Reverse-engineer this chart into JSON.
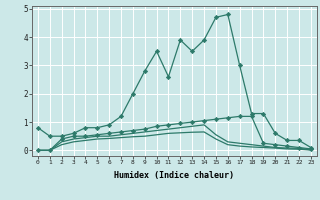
{
  "xlabel": "Humidex (Indice chaleur)",
  "x": [
    0,
    1,
    2,
    3,
    4,
    5,
    6,
    7,
    8,
    9,
    10,
    11,
    12,
    13,
    14,
    15,
    16,
    17,
    18,
    19,
    20,
    21,
    22,
    23
  ],
  "series1": [
    0.8,
    0.5,
    0.5,
    0.6,
    0.8,
    0.8,
    0.9,
    1.2,
    2.0,
    2.8,
    3.5,
    2.6,
    3.9,
    3.5,
    3.9,
    4.7,
    4.8,
    3.0,
    1.3,
    1.3,
    0.6,
    0.35,
    0.35,
    0.1
  ],
  "series2": [
    0.0,
    0.0,
    0.4,
    0.5,
    0.5,
    0.55,
    0.6,
    0.65,
    0.7,
    0.75,
    0.85,
    0.9,
    0.95,
    1.0,
    1.05,
    1.1,
    1.15,
    1.2,
    1.2,
    0.25,
    0.2,
    0.15,
    0.1,
    0.05
  ],
  "series3": [
    0.0,
    0.0,
    0.3,
    0.4,
    0.45,
    0.5,
    0.5,
    0.55,
    0.6,
    0.65,
    0.7,
    0.75,
    0.8,
    0.85,
    0.9,
    0.55,
    0.3,
    0.25,
    0.2,
    0.15,
    0.1,
    0.08,
    0.07,
    0.02
  ],
  "series4": [
    0.0,
    0.0,
    0.2,
    0.3,
    0.35,
    0.4,
    0.42,
    0.45,
    0.48,
    0.5,
    0.55,
    0.6,
    0.62,
    0.64,
    0.65,
    0.4,
    0.2,
    0.15,
    0.12,
    0.1,
    0.08,
    0.05,
    0.04,
    0.01
  ],
  "line_color": "#2d7a6a",
  "bg_color": "#cce8e8",
  "grid_color": "#ffffff",
  "ylim": [
    -0.2,
    5.1
  ],
  "yticks": [
    0,
    1,
    2,
    3,
    4,
    5
  ],
  "marker": "D",
  "marker_size": 2.2,
  "lw": 0.9
}
